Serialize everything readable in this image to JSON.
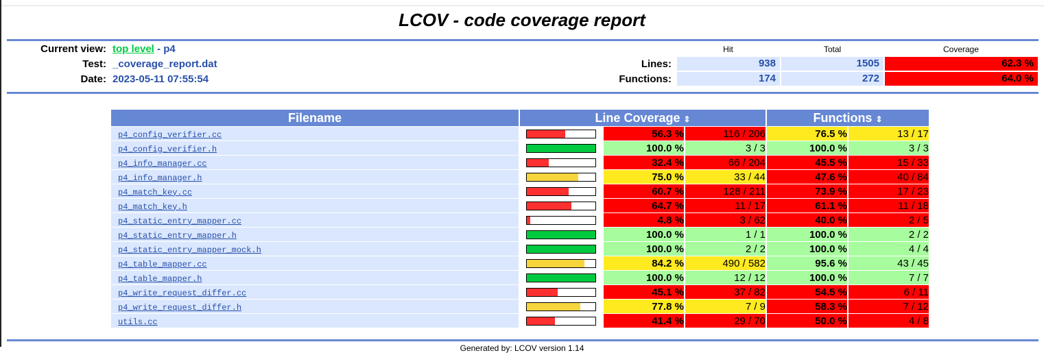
{
  "title": "LCOV - code coverage report",
  "header": {
    "current_view_label": "Current view:",
    "top_level_link": "top level",
    "sep": " - ",
    "current_dir": "p4",
    "test_label": "Test:",
    "test_value": "_coverage_report.dat",
    "date_label": "Date:",
    "date_value": "2023-05-11 07:55:54"
  },
  "summary": {
    "col_hit": "Hit",
    "col_total": "Total",
    "col_coverage": "Coverage",
    "lines_label": "Lines:",
    "lines_hit": "938",
    "lines_total": "1505",
    "lines_cov": "62.3 %",
    "functions_label": "Functions:",
    "functions_hit": "174",
    "functions_total": "272",
    "functions_cov": "64.0 %"
  },
  "table": {
    "col_filename": "Filename",
    "col_line_coverage": "Line Coverage",
    "col_functions": "Functions",
    "sort_glyph": "⇕"
  },
  "colors": {
    "low": "#ff0000",
    "med": "#ffea20",
    "hi": "#a7fc9d",
    "bar_low": "#ff3030",
    "bar_med": "#f7d53d",
    "bar_hi": "#00cb40"
  },
  "files": [
    {
      "name": "p4_config_verifier.cc",
      "line_pct": "56.3 %",
      "line_frac": 0.563,
      "line_cnt": "116 / 206",
      "line_rate": "low",
      "func_pct": "76.5 %",
      "func_cnt": "13 / 17",
      "func_rate": "med"
    },
    {
      "name": "p4_config_verifier.h",
      "line_pct": "100.0 %",
      "line_frac": 1.0,
      "line_cnt": "3 / 3",
      "line_rate": "hi",
      "func_pct": "100.0 %",
      "func_cnt": "3 / 3",
      "func_rate": "hi"
    },
    {
      "name": "p4_info_manager.cc",
      "line_pct": "32.4 %",
      "line_frac": 0.324,
      "line_cnt": "66 / 204",
      "line_rate": "low",
      "func_pct": "45.5 %",
      "func_cnt": "15 / 33",
      "func_rate": "low"
    },
    {
      "name": "p4_info_manager.h",
      "line_pct": "75.0 %",
      "line_frac": 0.75,
      "line_cnt": "33 / 44",
      "line_rate": "med",
      "func_pct": "47.6 %",
      "func_cnt": "40 / 84",
      "func_rate": "low"
    },
    {
      "name": "p4_match_key.cc",
      "line_pct": "60.7 %",
      "line_frac": 0.607,
      "line_cnt": "128 / 211",
      "line_rate": "low",
      "func_pct": "73.9 %",
      "func_cnt": "17 / 23",
      "func_rate": "low"
    },
    {
      "name": "p4_match_key.h",
      "line_pct": "64.7 %",
      "line_frac": 0.647,
      "line_cnt": "11 / 17",
      "line_rate": "low",
      "func_pct": "61.1 %",
      "func_cnt": "11 / 18",
      "func_rate": "low"
    },
    {
      "name": "p4_static_entry_mapper.cc",
      "line_pct": "4.8 %",
      "line_frac": 0.048,
      "line_cnt": "3 / 62",
      "line_rate": "low",
      "func_pct": "40.0 %",
      "func_cnt": "2 / 5",
      "func_rate": "low"
    },
    {
      "name": "p4_static_entry_mapper.h",
      "line_pct": "100.0 %",
      "line_frac": 1.0,
      "line_cnt": "1 / 1",
      "line_rate": "hi",
      "func_pct": "100.0 %",
      "func_cnt": "2 / 2",
      "func_rate": "hi"
    },
    {
      "name": "p4_static_entry_mapper_mock.h",
      "line_pct": "100.0 %",
      "line_frac": 1.0,
      "line_cnt": "2 / 2",
      "line_rate": "hi",
      "func_pct": "100.0 %",
      "func_cnt": "4 / 4",
      "func_rate": "hi"
    },
    {
      "name": "p4_table_mapper.cc",
      "line_pct": "84.2 %",
      "line_frac": 0.842,
      "line_cnt": "490 / 582",
      "line_rate": "med",
      "func_pct": "95.6 %",
      "func_cnt": "43 / 45",
      "func_rate": "hi"
    },
    {
      "name": "p4_table_mapper.h",
      "line_pct": "100.0 %",
      "line_frac": 1.0,
      "line_cnt": "12 / 12",
      "line_rate": "hi",
      "func_pct": "100.0 %",
      "func_cnt": "7 / 7",
      "func_rate": "hi"
    },
    {
      "name": "p4_write_request_differ.cc",
      "line_pct": "45.1 %",
      "line_frac": 0.451,
      "line_cnt": "37 / 82",
      "line_rate": "low",
      "func_pct": "54.5 %",
      "func_cnt": "6 / 11",
      "func_rate": "low"
    },
    {
      "name": "p4_write_request_differ.h",
      "line_pct": "77.8 %",
      "line_frac": 0.778,
      "line_cnt": "7 / 9",
      "line_rate": "med",
      "func_pct": "58.3 %",
      "func_cnt": "7 / 12",
      "func_rate": "low"
    },
    {
      "name": "utils.cc",
      "line_pct": "41.4 %",
      "line_frac": 0.414,
      "line_cnt": "29 / 70",
      "line_rate": "low",
      "func_pct": "50.0 %",
      "func_cnt": "4 / 8",
      "func_rate": "low"
    }
  ],
  "footer": "Generated by: LCOV version 1.14"
}
